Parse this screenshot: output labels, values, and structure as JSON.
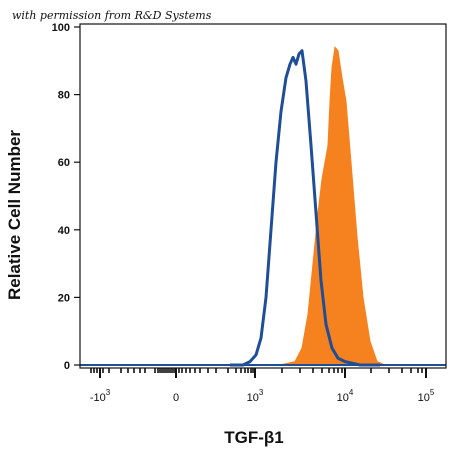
{
  "watermark": "with permission from R&D Systems",
  "chart_data": {
    "type": "area",
    "title": "",
    "xlabel": "TGF-β1",
    "ylabel": "Relative Cell Number",
    "x_scale": "biexponential",
    "ylim": [
      0,
      100
    ],
    "y_ticks": [
      0,
      20,
      40,
      60,
      80,
      100
    ],
    "y_tick_labels": [
      "0",
      "20",
      "40",
      "60",
      "80",
      "100"
    ],
    "x_tick_labels": [
      {
        "base": "-10",
        "exp": "3"
      },
      {
        "base": "0",
        "exp": ""
      },
      {
        "base": "10",
        "exp": "3"
      },
      {
        "base": "10",
        "exp": "4"
      },
      {
        "base": "10",
        "exp": "5"
      }
    ],
    "grid": false,
    "legend": "none",
    "series": [
      {
        "style": "filled",
        "color": "#f5821f",
        "points": [
          [
            160,
            0
          ],
          [
            200,
            0
          ],
          [
            215,
            1
          ],
          [
            222,
            5
          ],
          [
            228,
            15
          ],
          [
            233,
            30
          ],
          [
            238,
            45
          ],
          [
            242,
            55
          ],
          [
            245,
            60
          ],
          [
            248,
            65
          ],
          [
            250,
            78
          ],
          [
            252,
            88
          ],
          [
            255,
            94
          ],
          [
            258,
            93
          ],
          [
            262,
            85
          ],
          [
            266,
            78
          ],
          [
            271,
            60
          ],
          [
            277,
            38
          ],
          [
            283,
            20
          ],
          [
            290,
            7
          ],
          [
            297,
            1
          ],
          [
            305,
            0
          ],
          [
            320,
            0
          ]
        ]
      },
      {
        "style": "line",
        "color": "#1f4e96",
        "points": [
          [
            150,
            0
          ],
          [
            163,
            0
          ],
          [
            170,
            1
          ],
          [
            176,
            3
          ],
          [
            181,
            8
          ],
          [
            186,
            20
          ],
          [
            191,
            40
          ],
          [
            196,
            60
          ],
          [
            201,
            75
          ],
          [
            206,
            85
          ],
          [
            210,
            89
          ],
          [
            213,
            91
          ],
          [
            216,
            89
          ],
          [
            219,
            92
          ],
          [
            222,
            93
          ],
          [
            226,
            84
          ],
          [
            231,
            65
          ],
          [
            236,
            45
          ],
          [
            241,
            25
          ],
          [
            246,
            12
          ],
          [
            252,
            5
          ],
          [
            258,
            2
          ],
          [
            265,
            1
          ],
          [
            280,
            0
          ],
          [
            300,
            0
          ]
        ]
      }
    ]
  }
}
